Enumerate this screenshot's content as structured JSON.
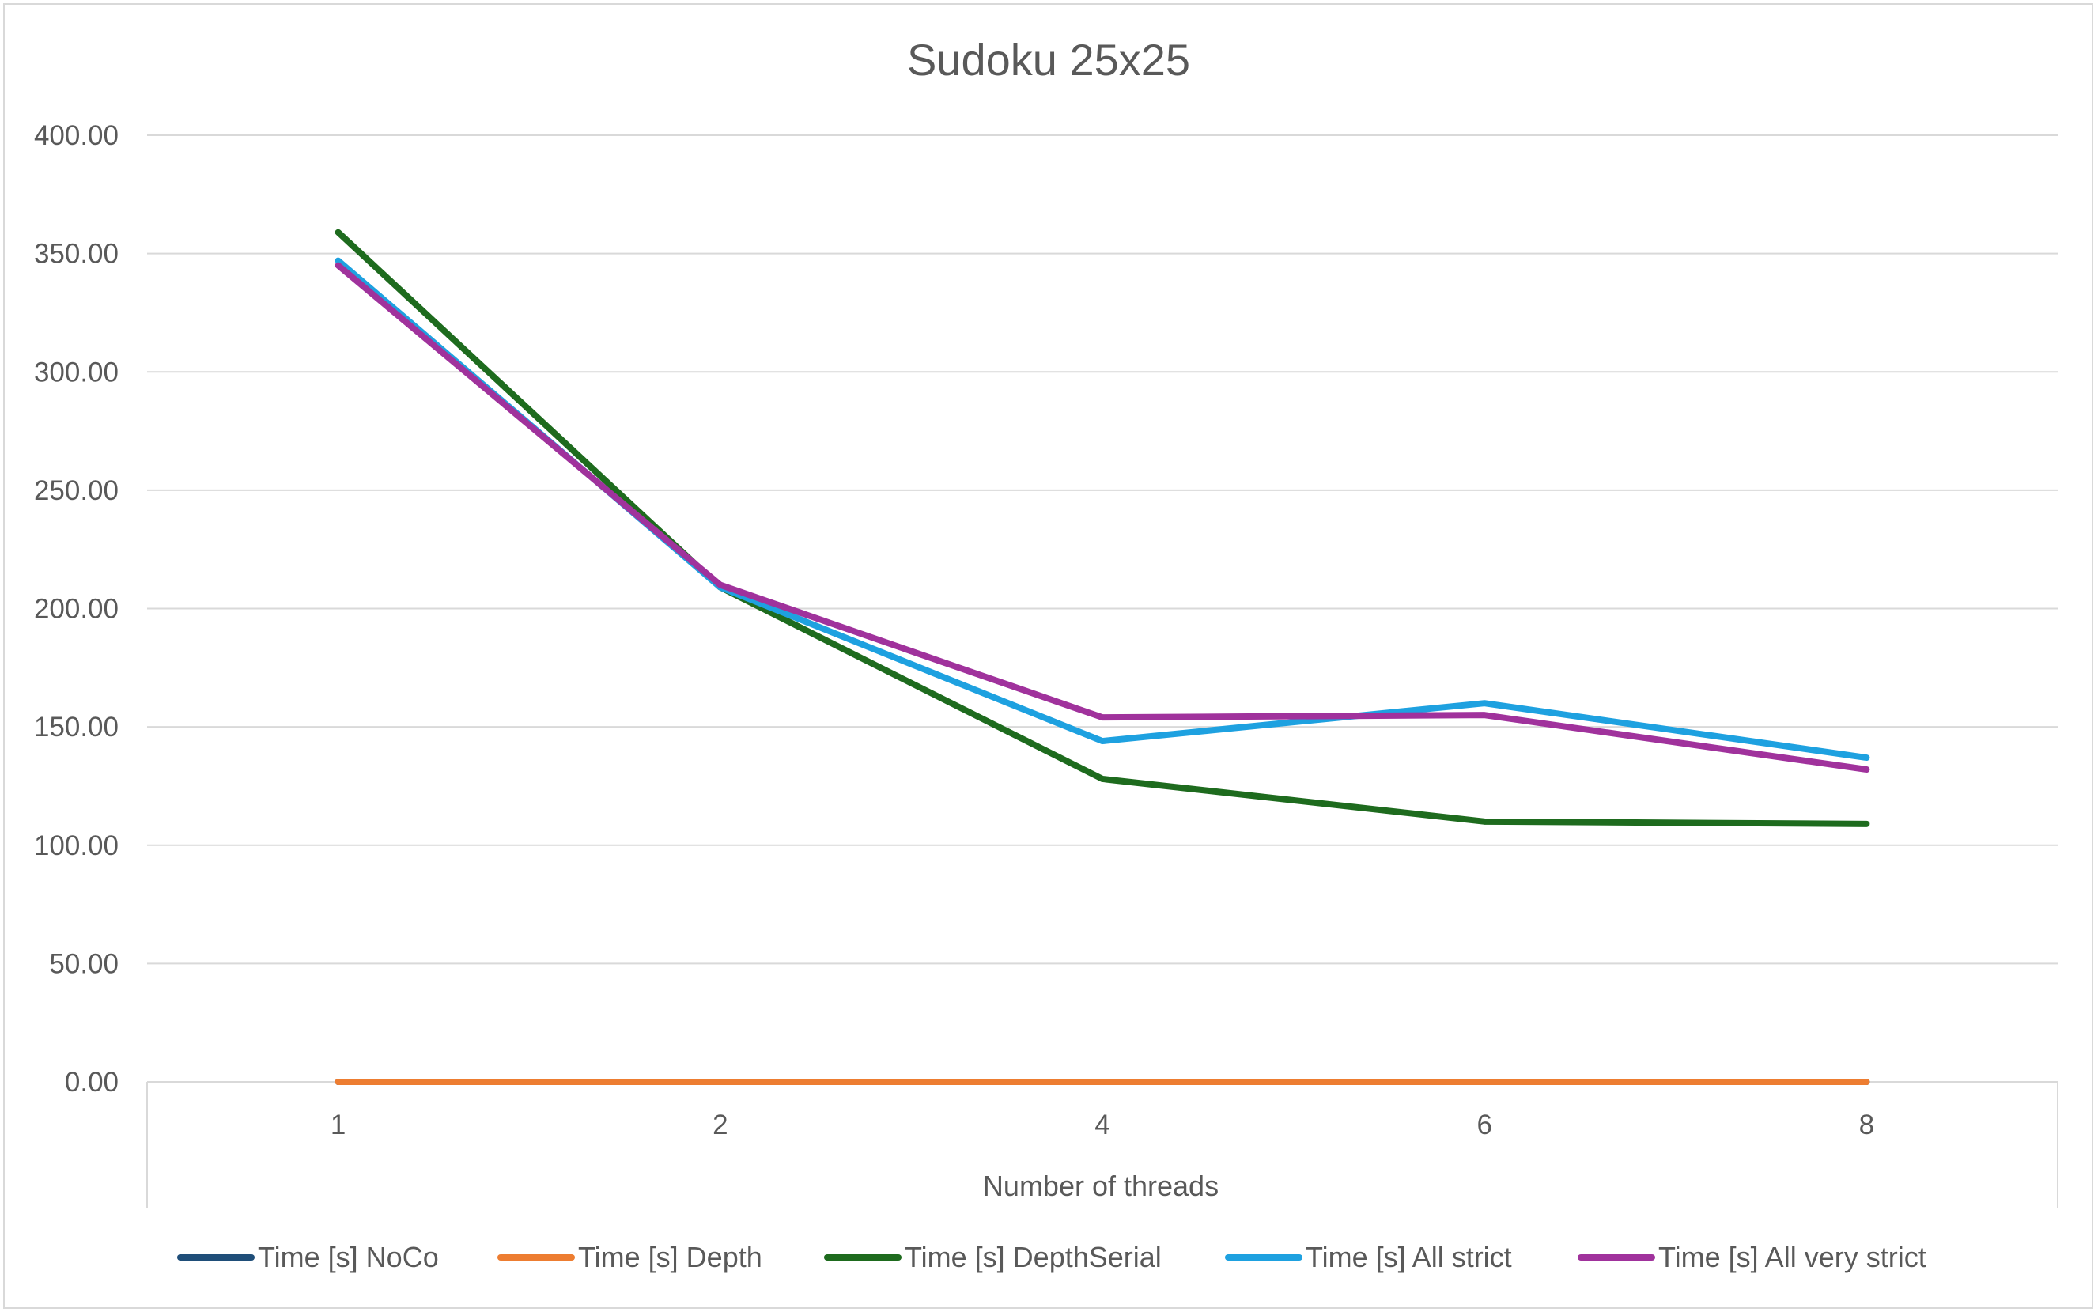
{
  "chart_data": {
    "type": "line",
    "title": "Sudoku 25x25",
    "xlabel": "Number of threads",
    "ylabel": "",
    "categories": [
      "1",
      "2",
      "4",
      "6",
      "8"
    ],
    "ylim": [
      0,
      400
    ],
    "yticks": [
      "0.00",
      "50.00",
      "100.00",
      "150.00",
      "200.00",
      "250.00",
      "300.00",
      "350.00",
      "400.00"
    ],
    "grid": true,
    "legend_position": "bottom",
    "series": [
      {
        "name": "Time [s] NoCo",
        "color": "#1f4e79",
        "values": [
          0,
          0,
          0,
          0,
          0
        ]
      },
      {
        "name": "Time [s] Depth",
        "color": "#ed7d31",
        "values": [
          0,
          0,
          0,
          0,
          0
        ]
      },
      {
        "name": "Time [s] DepthSerial",
        "color": "#1e6b1e",
        "values": [
          359,
          209,
          128,
          110,
          109
        ]
      },
      {
        "name": "Time [s] All strict",
        "color": "#1ea1e0",
        "values": [
          347,
          209,
          144,
          160,
          137
        ]
      },
      {
        "name": "Time [s] All very strict",
        "color": "#a0329c",
        "values": [
          345,
          210,
          154,
          155,
          132
        ]
      }
    ]
  }
}
